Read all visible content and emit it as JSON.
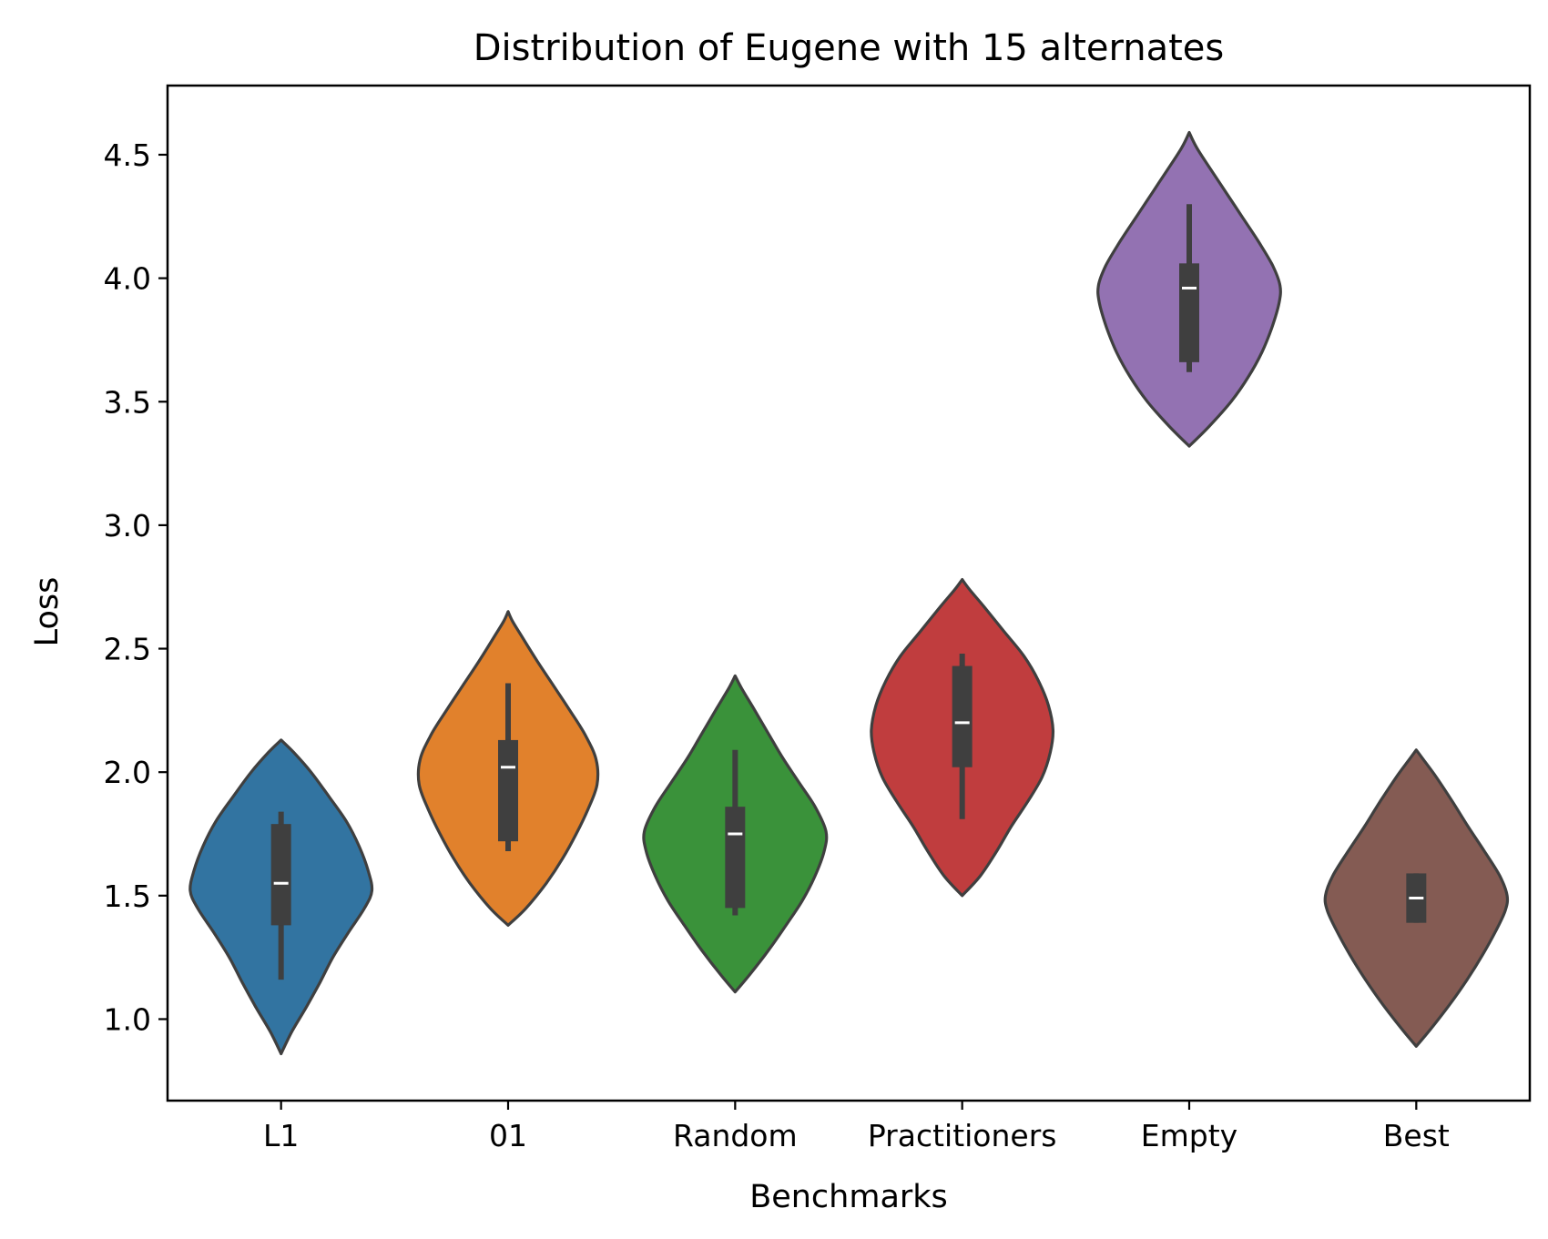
{
  "chart_data": {
    "type": "violin",
    "title": "Distribution of Eugene with 15 alternates",
    "xlabel": "Benchmarks",
    "ylabel": "Loss",
    "ylim": [
      0.67,
      4.78
    ],
    "yticks": [
      "1.0",
      "1.5",
      "2.0",
      "2.5",
      "3.0",
      "3.5",
      "4.0",
      "4.5"
    ],
    "yticks_values": [
      1.0,
      1.5,
      2.0,
      2.5,
      3.0,
      3.5,
      4.0,
      4.5
    ],
    "grid": false,
    "legend": "none",
    "categories": [
      "L1",
      "01",
      "Random",
      "Practitioners",
      "Empty",
      "Best"
    ],
    "series": [
      {
        "category": "L1",
        "color": "#3274a1",
        "kde_max": 2.13,
        "kde_min": 0.86,
        "whisker_low": 1.16,
        "q1": 1.38,
        "median": 1.55,
        "q3": 1.79,
        "whisker_high": 1.84,
        "density": [
          [
            0.86,
            0.0
          ],
          [
            0.95,
            0.12
          ],
          [
            1.05,
            0.28
          ],
          [
            1.15,
            0.43
          ],
          [
            1.25,
            0.57
          ],
          [
            1.35,
            0.74
          ],
          [
            1.45,
            0.92
          ],
          [
            1.52,
            1.0
          ],
          [
            1.6,
            0.96
          ],
          [
            1.7,
            0.86
          ],
          [
            1.8,
            0.72
          ],
          [
            1.9,
            0.53
          ],
          [
            2.0,
            0.33
          ],
          [
            2.08,
            0.14
          ],
          [
            2.13,
            0.0
          ]
        ]
      },
      {
        "category": "01",
        "color": "#e1812c",
        "kde_max": 2.65,
        "kde_min": 1.38,
        "whisker_low": 1.68,
        "q1": 1.72,
        "median": 2.02,
        "q3": 2.13,
        "whisker_high": 2.36,
        "density": [
          [
            1.38,
            0.0
          ],
          [
            1.45,
            0.2
          ],
          [
            1.55,
            0.42
          ],
          [
            1.65,
            0.6
          ],
          [
            1.75,
            0.75
          ],
          [
            1.85,
            0.88
          ],
          [
            1.95,
            0.98
          ],
          [
            2.05,
            0.97
          ],
          [
            2.15,
            0.85
          ],
          [
            2.25,
            0.68
          ],
          [
            2.35,
            0.5
          ],
          [
            2.45,
            0.32
          ],
          [
            2.55,
            0.15
          ],
          [
            2.61,
            0.05
          ],
          [
            2.65,
            0.0
          ]
        ]
      },
      {
        "category": "Random",
        "color": "#3a923a",
        "kde_max": 2.39,
        "kde_min": 1.11,
        "whisker_low": 1.42,
        "q1": 1.45,
        "median": 1.75,
        "q3": 1.86,
        "whisker_high": 2.09,
        "density": [
          [
            1.11,
            0.0
          ],
          [
            1.18,
            0.16
          ],
          [
            1.28,
            0.37
          ],
          [
            1.38,
            0.56
          ],
          [
            1.48,
            0.74
          ],
          [
            1.58,
            0.88
          ],
          [
            1.68,
            0.98
          ],
          [
            1.76,
            1.0
          ],
          [
            1.86,
            0.88
          ],
          [
            1.96,
            0.7
          ],
          [
            2.06,
            0.52
          ],
          [
            2.16,
            0.36
          ],
          [
            2.26,
            0.2
          ],
          [
            2.34,
            0.07
          ],
          [
            2.39,
            0.0
          ]
        ]
      },
      {
        "category": "Practitioners",
        "color": "#c03d3e",
        "kde_max": 2.78,
        "kde_min": 1.5,
        "whisker_low": 1.81,
        "q1": 2.02,
        "median": 2.2,
        "q3": 2.43,
        "whisker_high": 2.48,
        "density": [
          [
            1.5,
            0.0
          ],
          [
            1.58,
            0.2
          ],
          [
            1.68,
            0.38
          ],
          [
            1.78,
            0.54
          ],
          [
            1.88,
            0.72
          ],
          [
            1.98,
            0.88
          ],
          [
            2.08,
            0.97
          ],
          [
            2.17,
            1.0
          ],
          [
            2.27,
            0.95
          ],
          [
            2.37,
            0.84
          ],
          [
            2.47,
            0.68
          ],
          [
            2.57,
            0.46
          ],
          [
            2.67,
            0.24
          ],
          [
            2.74,
            0.08
          ],
          [
            2.78,
            0.0
          ]
        ]
      },
      {
        "category": "Empty",
        "color": "#9372b2",
        "kde_max": 4.59,
        "kde_min": 3.32,
        "whisker_low": 3.62,
        "q1": 3.66,
        "median": 3.96,
        "q3": 4.06,
        "whisker_high": 4.3,
        "density": [
          [
            3.32,
            0.0
          ],
          [
            3.4,
            0.22
          ],
          [
            3.5,
            0.46
          ],
          [
            3.6,
            0.65
          ],
          [
            3.7,
            0.8
          ],
          [
            3.8,
            0.91
          ],
          [
            3.9,
            0.99
          ],
          [
            3.97,
            1.0
          ],
          [
            4.05,
            0.92
          ],
          [
            4.15,
            0.76
          ],
          [
            4.25,
            0.58
          ],
          [
            4.35,
            0.4
          ],
          [
            4.45,
            0.22
          ],
          [
            4.53,
            0.08
          ],
          [
            4.59,
            0.0
          ]
        ]
      },
      {
        "category": "Best",
        "color": "#845b53",
        "kde_max": 2.09,
        "kde_min": 0.89,
        "whisker_low": 1.39,
        "q1": 1.39,
        "median": 1.49,
        "q3": 1.59,
        "whisker_high": 1.59,
        "density": [
          [
            0.89,
            0.0
          ],
          [
            0.96,
            0.16
          ],
          [
            1.06,
            0.37
          ],
          [
            1.16,
            0.56
          ],
          [
            1.26,
            0.73
          ],
          [
            1.36,
            0.88
          ],
          [
            1.44,
            0.98
          ],
          [
            1.5,
            1.0
          ],
          [
            1.58,
            0.92
          ],
          [
            1.68,
            0.75
          ],
          [
            1.78,
            0.57
          ],
          [
            1.88,
            0.4
          ],
          [
            1.98,
            0.22
          ],
          [
            2.05,
            0.08
          ],
          [
            2.09,
            0.0
          ]
        ]
      }
    ]
  }
}
